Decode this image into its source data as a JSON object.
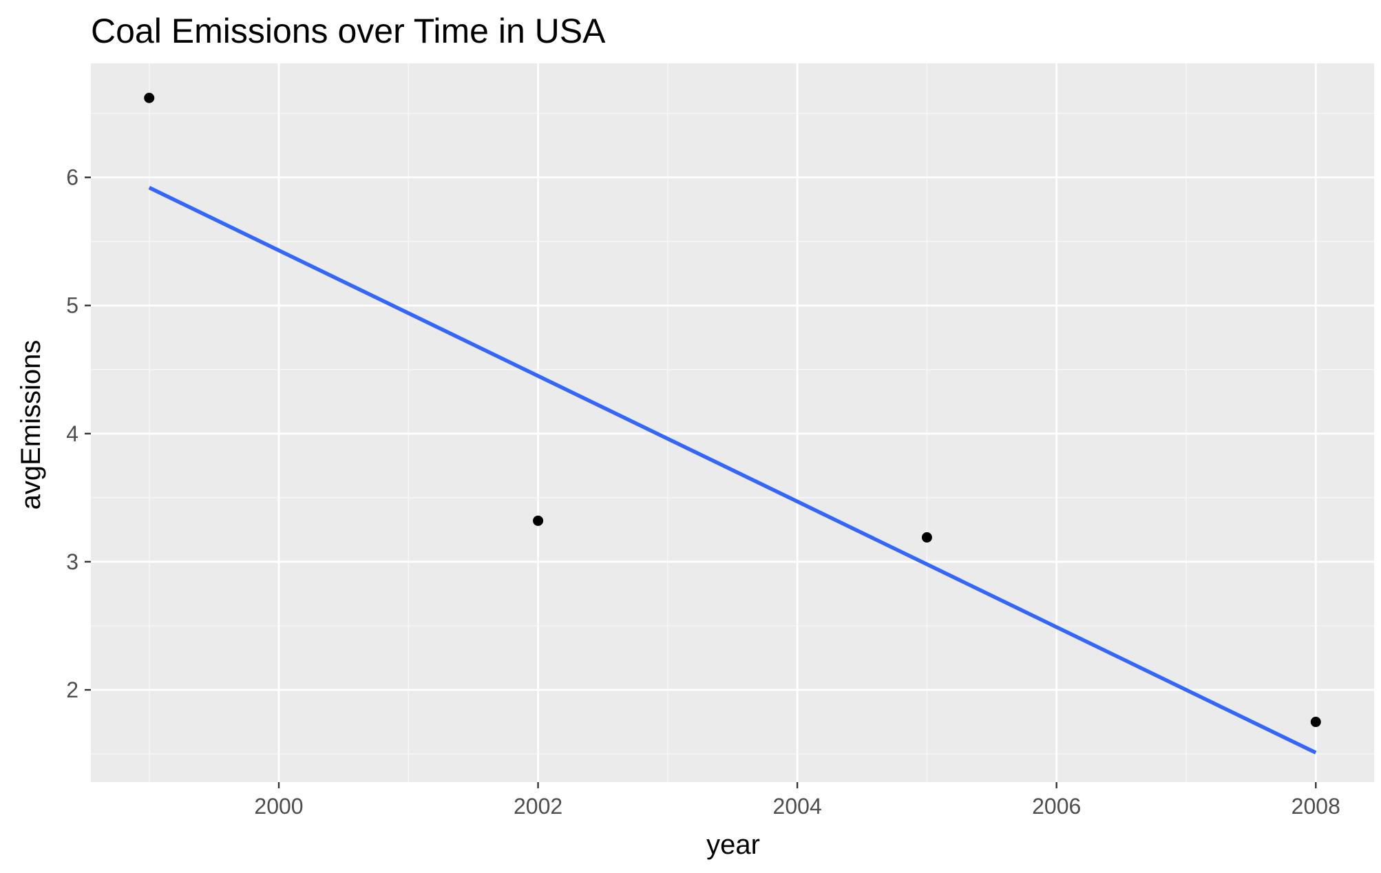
{
  "chart_data": {
    "type": "scatter",
    "title": "Coal Emissions over Time in USA",
    "xlabel": "year",
    "ylabel": "avgEmissions",
    "x_ticks": [
      2000,
      2002,
      2004,
      2006,
      2008
    ],
    "y_ticks": [
      2,
      3,
      4,
      5,
      6
    ],
    "xlim": [
      1998.55,
      2008.45
    ],
    "ylim": [
      1.28,
      6.89
    ],
    "grid": true,
    "legend": "none",
    "series": [
      {
        "type": "scatter",
        "x": [
          1999,
          2002,
          2005,
          2008
        ],
        "y": [
          6.62,
          3.32,
          3.19,
          1.75
        ],
        "color": "#000000"
      },
      {
        "type": "line",
        "x": [
          1999,
          2008
        ],
        "y": [
          5.92,
          1.51
        ],
        "color": "#3366FF"
      }
    ],
    "colors": {
      "panel_background": "#EBEBEB",
      "grid_major": "#FFFFFF",
      "grid_minor": "#F7F7F7",
      "point": "#000000",
      "trend_line": "#3366FF"
    }
  }
}
